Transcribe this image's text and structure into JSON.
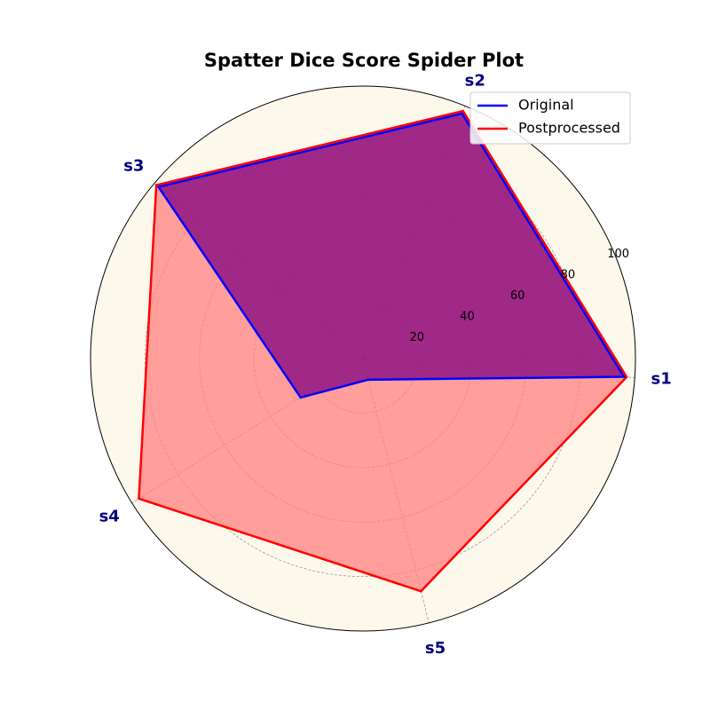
{
  "chart_data": {
    "type": "radar",
    "title": "Spatter Dice Score Spider Plot",
    "categories": [
      "s1",
      "s2",
      "s3",
      "s4",
      "s5"
    ],
    "rlim": [
      0,
      100
    ],
    "rticks": [
      20,
      40,
      60,
      80,
      100
    ],
    "grid": true,
    "legend": "top-right",
    "series": [
      {
        "name": "Original",
        "values": [
          96,
          97,
          98,
          27,
          8
        ],
        "color": "#0000ff",
        "fill": "#800080"
      },
      {
        "name": "Postprocessed",
        "values": [
          97,
          98,
          99,
          97,
          88
        ],
        "color": "#ff0000",
        "fill": "#ff8080"
      }
    ],
    "background_color": "#fdf8ec"
  }
}
